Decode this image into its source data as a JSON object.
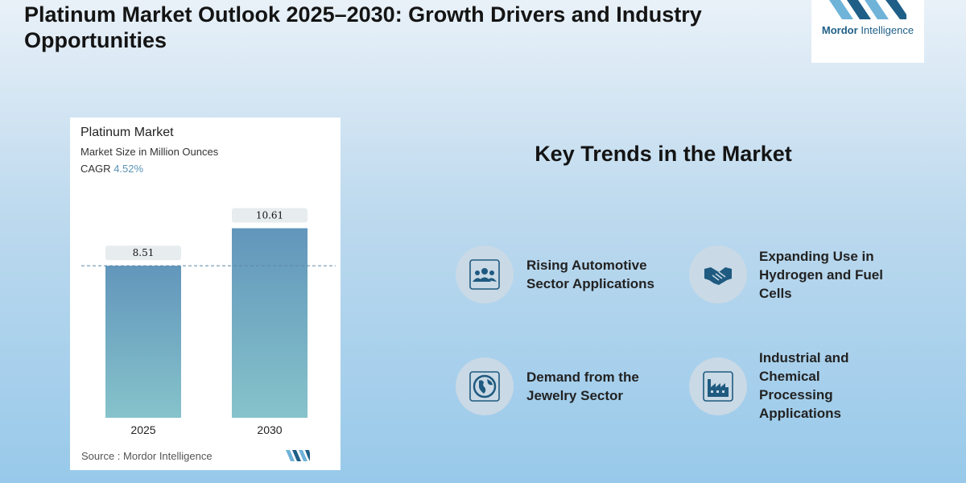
{
  "page": {
    "title": "Platinum Market Outlook 2025–2030: Growth Drivers and Industry Opportunities"
  },
  "logo": {
    "brand": "Mordor",
    "brand2": "Intelligence",
    "color": "#1f5f87",
    "accent": "#6fb3d9"
  },
  "chart_data": {
    "type": "bar",
    "title": "Platinum Market",
    "subtitle": "Market Size in Million Ounces",
    "cagr_label": "CAGR",
    "cagr_value": "4.52%",
    "categories": [
      "2025",
      "2030"
    ],
    "values": [
      8.51,
      10.61
    ],
    "value_labels": [
      "8.51",
      "10.61"
    ],
    "ylim": [
      0,
      12.3
    ],
    "grid": false,
    "reference_line": "dashed line at the 2025 value",
    "bar_color_top": "#6296bb",
    "bar_color_bottom": "#86c3cb",
    "source": "Source :  Mordor Intelligence"
  },
  "trends": {
    "title": "Key Trends in the Market",
    "items": [
      {
        "icon": "people-group-icon",
        "label_lines": [
          "Rising Automotive",
          "Sector Applications"
        ]
      },
      {
        "icon": "handshake-icon",
        "label_lines": [
          "Expanding Use in",
          "Hydrogen and Fuel",
          "Cells"
        ]
      },
      {
        "icon": "globe-icon",
        "label_lines": [
          "Demand from the",
          "Jewelry Sector"
        ]
      },
      {
        "icon": "factory-icon",
        "label_lines": [
          "Industrial and",
          "Chemical",
          "Processing",
          "Applications"
        ]
      }
    ],
    "icon_color": "#1f5a80",
    "circle_color": "#c9d9e5"
  }
}
